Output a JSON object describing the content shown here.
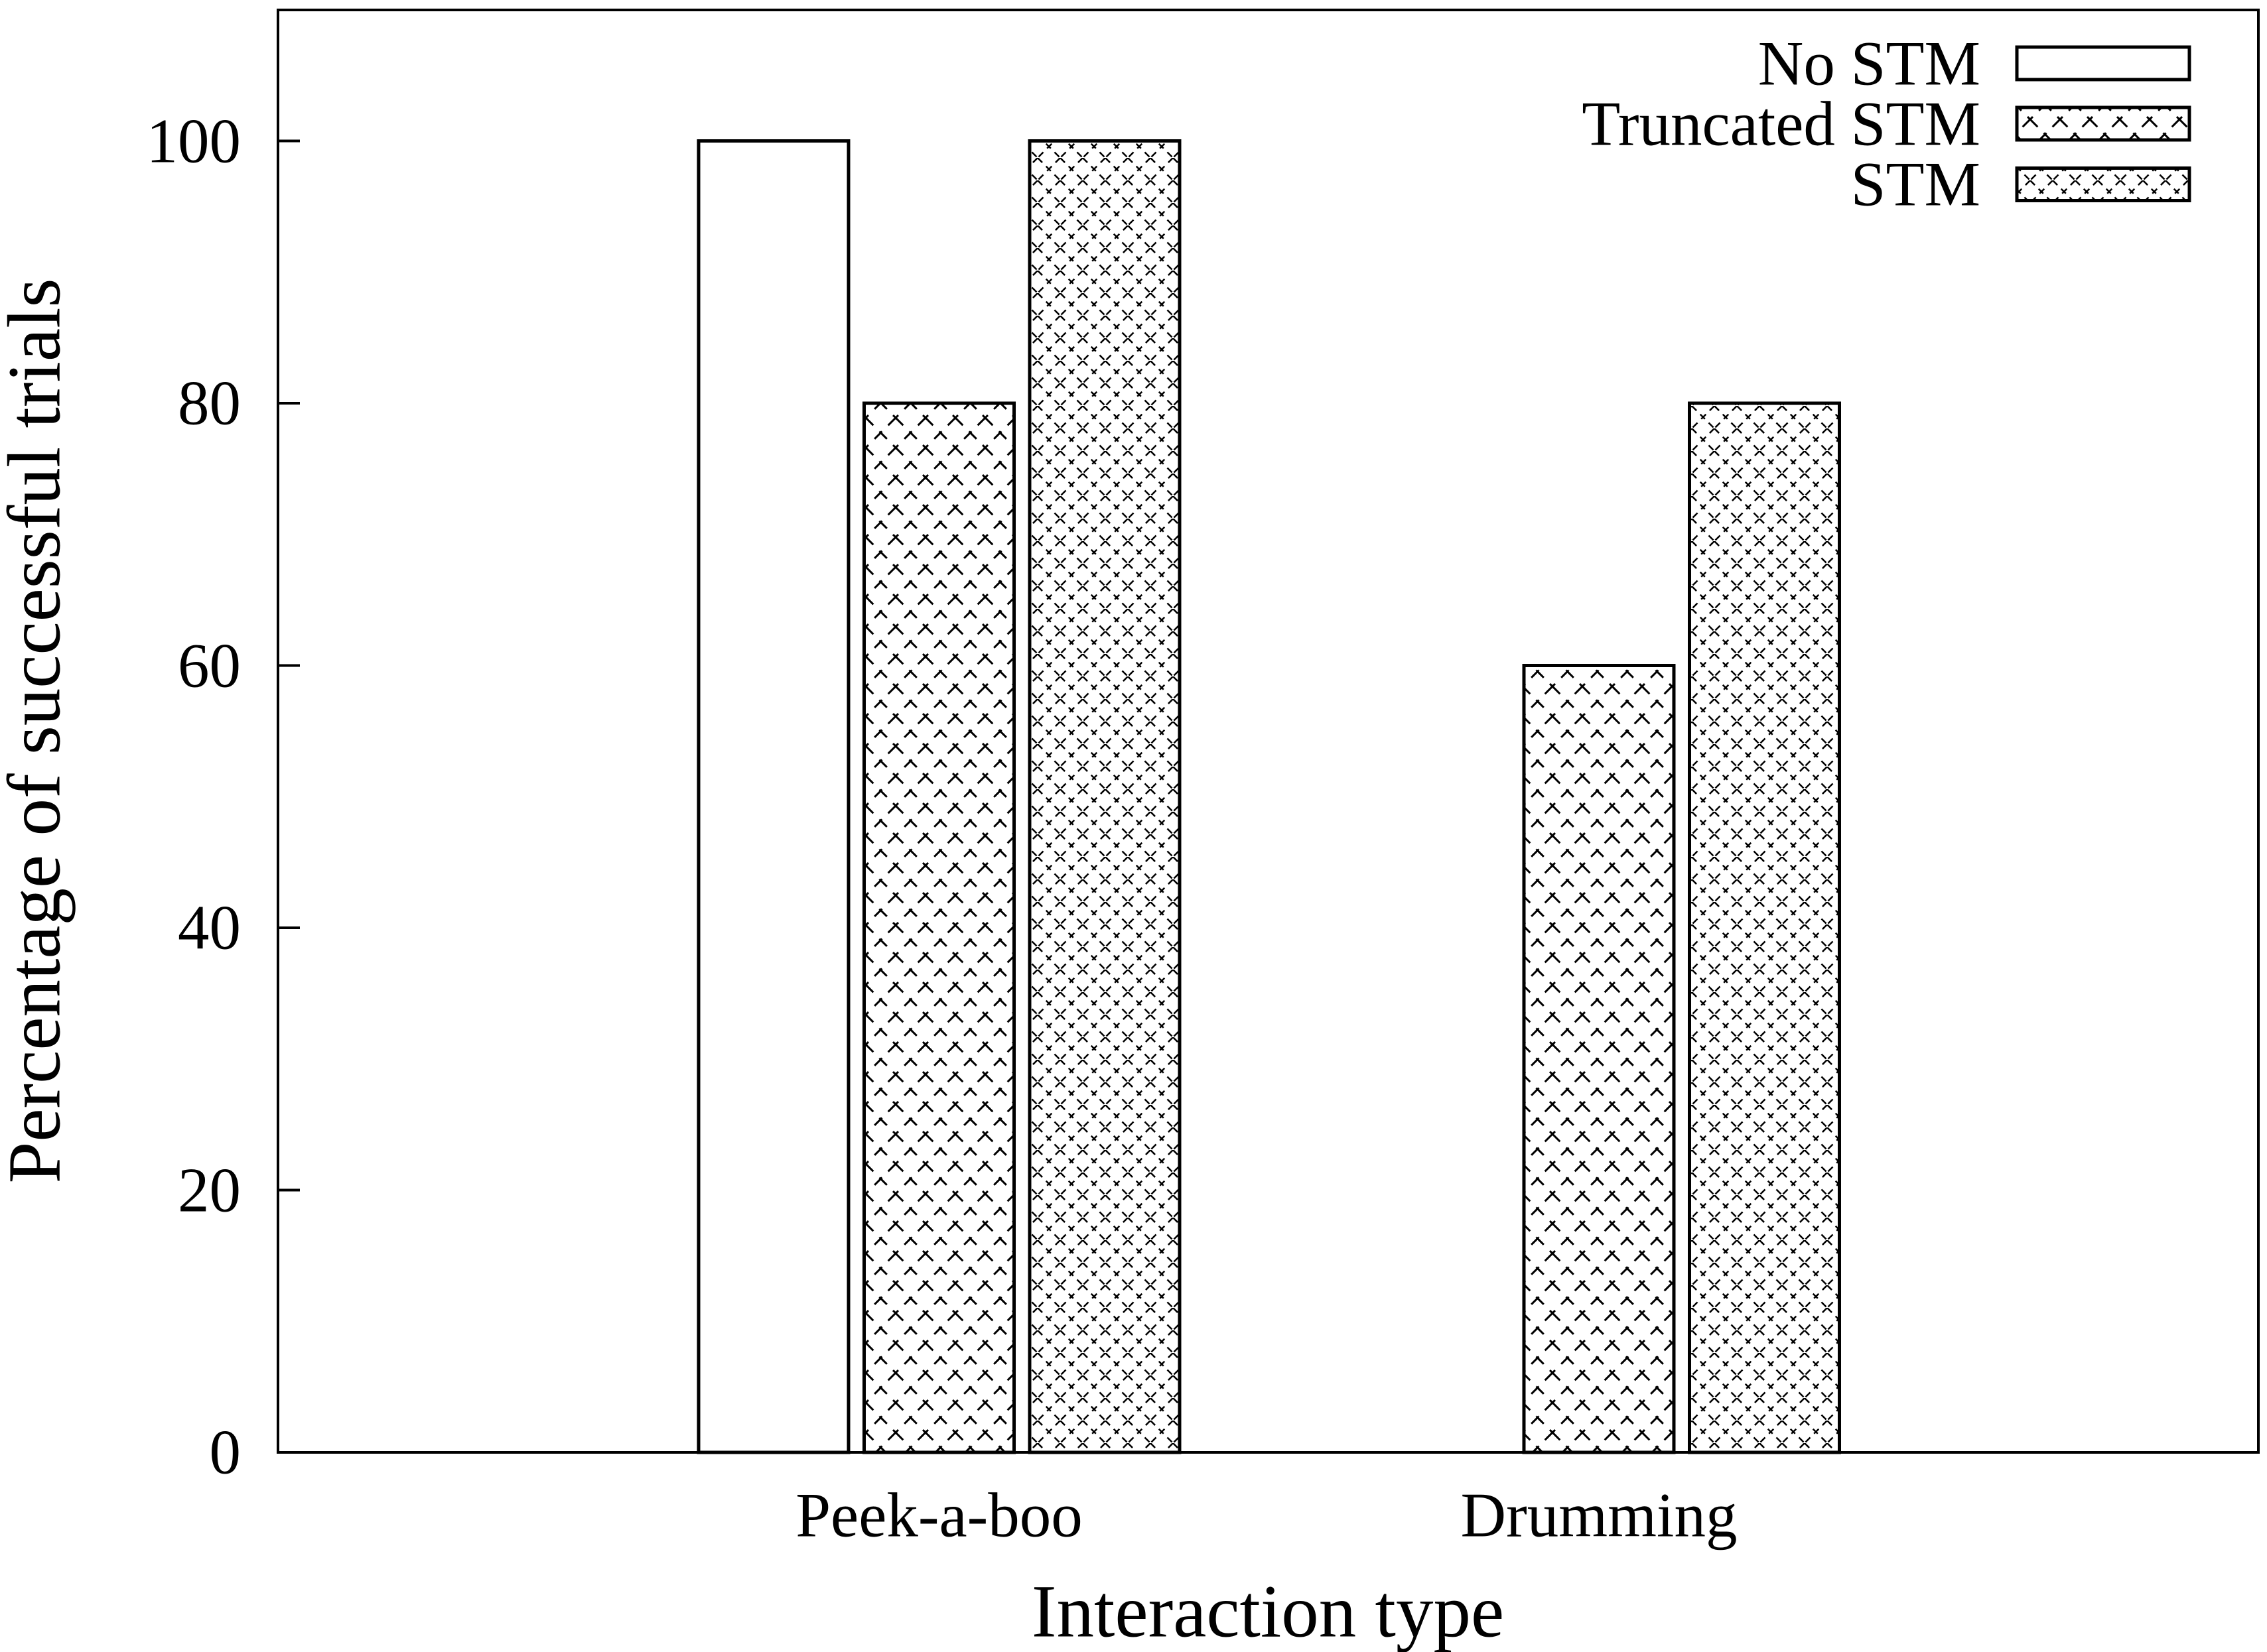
{
  "figure": {
    "background_color": "#ffffff",
    "foreground_color": "#000000"
  },
  "chart_data": {
    "type": "bar",
    "title": "",
    "xlabel": "Interaction type",
    "ylabel": "Percentage of successful trials",
    "categories": [
      "Peek-a-boo",
      "Drumming"
    ],
    "series": [
      {
        "name": "No STM",
        "pattern": "plain-white",
        "values": [
          100,
          0
        ]
      },
      {
        "name": "Truncated STM",
        "pattern": "coarse-crosshatch",
        "values": [
          80,
          60
        ]
      },
      {
        "name": "STM",
        "pattern": "fine-crosshatch",
        "values": [
          100,
          80
        ]
      }
    ],
    "yticks": [
      0,
      20,
      40,
      60,
      80,
      100
    ],
    "ylim": [
      0,
      110
    ],
    "grid": false,
    "legend_position": "top-right",
    "bar_fill_background": "#ffffff",
    "bar_border_color": "#000000"
  }
}
